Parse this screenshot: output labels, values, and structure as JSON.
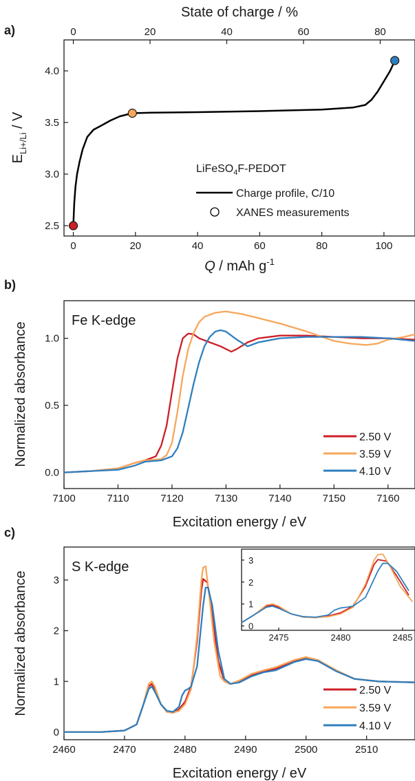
{
  "figure": {
    "panels": [
      "a)",
      "b)",
      "c)"
    ]
  },
  "colors": {
    "v250": "#cc1f27",
    "v359": "#f7a65a",
    "v410": "#2e7fbf",
    "profile": "#000000"
  },
  "chart_data": [
    {
      "panel": "a)",
      "type": "line",
      "xlabel_italic": "Q",
      "xlabel_rest": " /  mAh g",
      "xlabel_sup": "-1",
      "ylabel_main": "E",
      "ylabel_sub": "Li+/Li",
      "ylabel_rest": " / V",
      "top_xlabel": "State of charge / %",
      "xlim": [
        -3,
        110
      ],
      "ylim": [
        2.4,
        4.3
      ],
      "xticks": [
        0,
        20,
        40,
        60,
        80,
        100
      ],
      "yticks": [
        2.5,
        3.0,
        3.5,
        4.0
      ],
      "top_ticks": [
        0,
        20,
        40,
        60,
        80
      ],
      "top_tick_positions_q": [
        0,
        24.7,
        49.4,
        74.1,
        98.8
      ],
      "annotation_title": "LiFeSO",
      "annotation_sub": "4",
      "annotation_rest": "F-PEDOT",
      "legend": [
        "Charge profile, C/10",
        "XANES measurements"
      ],
      "series": [
        {
          "name": "Charge profile, C/10",
          "x": [
            0,
            0.3,
            0.7,
            1.2,
            2,
            3,
            4.5,
            6.5,
            9,
            12,
            15,
            19,
            25,
            40,
            60,
            80,
            90,
            94,
            96,
            98,
            100,
            102,
            103.5
          ],
          "y": [
            2.5,
            2.72,
            2.88,
            3.0,
            3.12,
            3.24,
            3.36,
            3.43,
            3.47,
            3.52,
            3.56,
            3.59,
            3.595,
            3.6,
            3.61,
            3.625,
            3.645,
            3.67,
            3.72,
            3.8,
            3.9,
            4.0,
            4.1
          ]
        }
      ],
      "markers": [
        {
          "x": 0,
          "y": 2.5,
          "color": "#cc1f27"
        },
        {
          "x": 19,
          "y": 3.59,
          "color": "#f7a65a"
        },
        {
          "x": 103.5,
          "y": 4.1,
          "color": "#2e7fbf"
        }
      ]
    },
    {
      "panel": "b)",
      "type": "line",
      "label": "Fe K-edge",
      "xlabel": "Excitation energy / eV",
      "ylabel": "Normalized absorbance",
      "xlim": [
        7100,
        7165
      ],
      "ylim": [
        -0.12,
        1.28
      ],
      "xticks": [
        7100,
        7110,
        7120,
        7130,
        7140,
        7150,
        7160
      ],
      "yticks": [
        0.0,
        0.5,
        1.0
      ],
      "ytick_labels": [
        "0.0",
        "0.5",
        "1.0"
      ],
      "legend": [
        "2.50 V",
        "3.59 V",
        "4.10 V"
      ],
      "series": [
        {
          "name": "2.50 V",
          "x": [
            7100,
            7105,
            7110,
            7113,
            7115,
            7117,
            7118,
            7119,
            7120,
            7121,
            7122,
            7123,
            7124,
            7125,
            7127,
            7129,
            7131,
            7132,
            7134,
            7136,
            7140,
            7145,
            7150,
            7155,
            7160,
            7165
          ],
          "y": [
            0.0,
            0.01,
            0.03,
            0.07,
            0.09,
            0.12,
            0.2,
            0.35,
            0.6,
            0.85,
            1.0,
            1.035,
            1.03,
            1.0,
            0.97,
            0.94,
            0.9,
            0.92,
            0.97,
            1.0,
            1.02,
            1.02,
            1.01,
            1.0,
            1.0,
            0.99
          ]
        },
        {
          "name": "3.59 V",
          "x": [
            7100,
            7105,
            7110,
            7113,
            7115,
            7118,
            7119,
            7120,
            7121,
            7122,
            7123,
            7124,
            7125,
            7126,
            7128,
            7130,
            7133,
            7136,
            7140,
            7145,
            7150,
            7153,
            7156,
            7158,
            7160,
            7163,
            7165
          ],
          "y": [
            0.0,
            0.01,
            0.03,
            0.07,
            0.09,
            0.1,
            0.13,
            0.22,
            0.45,
            0.72,
            0.92,
            1.04,
            1.12,
            1.16,
            1.19,
            1.2,
            1.18,
            1.15,
            1.11,
            1.05,
            0.98,
            0.96,
            0.95,
            0.96,
            0.99,
            1.01,
            1.03
          ]
        },
        {
          "name": "4.10 V",
          "x": [
            7100,
            7105,
            7110,
            7113,
            7115,
            7118,
            7120,
            7121,
            7122,
            7123,
            7124,
            7125,
            7126,
            7127,
            7128,
            7129,
            7130,
            7132,
            7134,
            7136,
            7140,
            7145,
            7150,
            7155,
            7160,
            7165
          ],
          "y": [
            0.0,
            0.01,
            0.02,
            0.05,
            0.08,
            0.09,
            0.12,
            0.18,
            0.3,
            0.48,
            0.66,
            0.82,
            0.94,
            1.01,
            1.05,
            1.06,
            1.05,
            0.99,
            0.94,
            0.97,
            1.0,
            1.01,
            1.01,
            1.01,
            1.0,
            0.98
          ]
        }
      ]
    },
    {
      "panel": "c)",
      "type": "line",
      "label": "S K-edge",
      "xlabel": "Excitation energy / eV",
      "ylabel": "Normalized absorbance",
      "xlim": [
        2460,
        2518
      ],
      "ylim": [
        -0.15,
        3.65
      ],
      "xticks": [
        2460,
        2470,
        2480,
        2490,
        2500,
        2510
      ],
      "yticks": [
        0,
        1,
        2,
        3
      ],
      "legend": [
        "2.50 V",
        "3.59 V",
        "4.10 V"
      ],
      "series": [
        {
          "name": "2.50 V",
          "x": [
            2460,
            2466,
            2470,
            2472,
            2473,
            2474,
            2474.5,
            2475,
            2476,
            2477,
            2478,
            2479,
            2480,
            2481,
            2482,
            2482.7,
            2483,
            2483.7,
            2484.5,
            2485.5,
            2486.5,
            2487.5,
            2489,
            2491,
            2493,
            2495,
            2498,
            2500,
            2502,
            2505,
            2508,
            2512,
            2518
          ],
          "y": [
            0.0,
            0.0,
            0.03,
            0.15,
            0.5,
            0.9,
            0.95,
            0.85,
            0.55,
            0.4,
            0.38,
            0.45,
            0.6,
            0.9,
            1.8,
            2.8,
            3.02,
            2.95,
            2.3,
            1.4,
            1.0,
            0.95,
            1.0,
            1.12,
            1.2,
            1.25,
            1.4,
            1.45,
            1.4,
            1.2,
            1.05,
            1.0,
            0.98
          ]
        },
        {
          "name": "3.59 V",
          "x": [
            2460,
            2466,
            2470,
            2472,
            2473,
            2474,
            2474.5,
            2475,
            2476,
            2477,
            2478,
            2479,
            2480,
            2481,
            2482,
            2482.7,
            2483,
            2483.4,
            2484,
            2484.8,
            2485.8,
            2486.5,
            2487.5,
            2489,
            2491,
            2493,
            2495,
            2498,
            2500,
            2502,
            2505,
            2508,
            2512,
            2518
          ],
          "y": [
            0.0,
            0.0,
            0.03,
            0.15,
            0.5,
            0.95,
            1.0,
            0.9,
            0.55,
            0.4,
            0.38,
            0.42,
            0.55,
            0.85,
            1.9,
            3.0,
            3.25,
            3.27,
            2.7,
            1.8,
            1.1,
            1.0,
            0.95,
            1.02,
            1.15,
            1.22,
            1.28,
            1.42,
            1.48,
            1.42,
            1.22,
            1.05,
            1.0,
            0.98
          ]
        },
        {
          "name": "4.10 V",
          "x": [
            2460,
            2466,
            2470,
            2472,
            2473,
            2474,
            2474.5,
            2475,
            2476,
            2477,
            2478,
            2479,
            2479.5,
            2480,
            2480.5,
            2481,
            2482,
            2483,
            2483.4,
            2483.8,
            2484.5,
            2485.5,
            2486.5,
            2487.5,
            2489,
            2491,
            2493,
            2495,
            2498,
            2500,
            2502,
            2505,
            2508,
            2512,
            2518
          ],
          "y": [
            0.0,
            0.0,
            0.03,
            0.15,
            0.5,
            0.85,
            0.9,
            0.8,
            0.55,
            0.42,
            0.4,
            0.5,
            0.72,
            0.82,
            0.85,
            0.9,
            1.3,
            2.5,
            2.85,
            2.85,
            2.5,
            1.6,
            1.05,
            0.95,
            0.98,
            1.1,
            1.18,
            1.22,
            1.38,
            1.44,
            1.4,
            1.2,
            1.05,
            1.0,
            0.98
          ]
        }
      ]
    },
    {
      "panel": "c) inset",
      "type": "line",
      "xlim": [
        2472,
        2486
      ],
      "ylim": [
        -0.2,
        3.5
      ],
      "xticks": [
        2475,
        2480,
        2485
      ],
      "yticks": [
        0,
        1,
        2,
        3
      ],
      "source_series_panel": "c)"
    }
  ]
}
